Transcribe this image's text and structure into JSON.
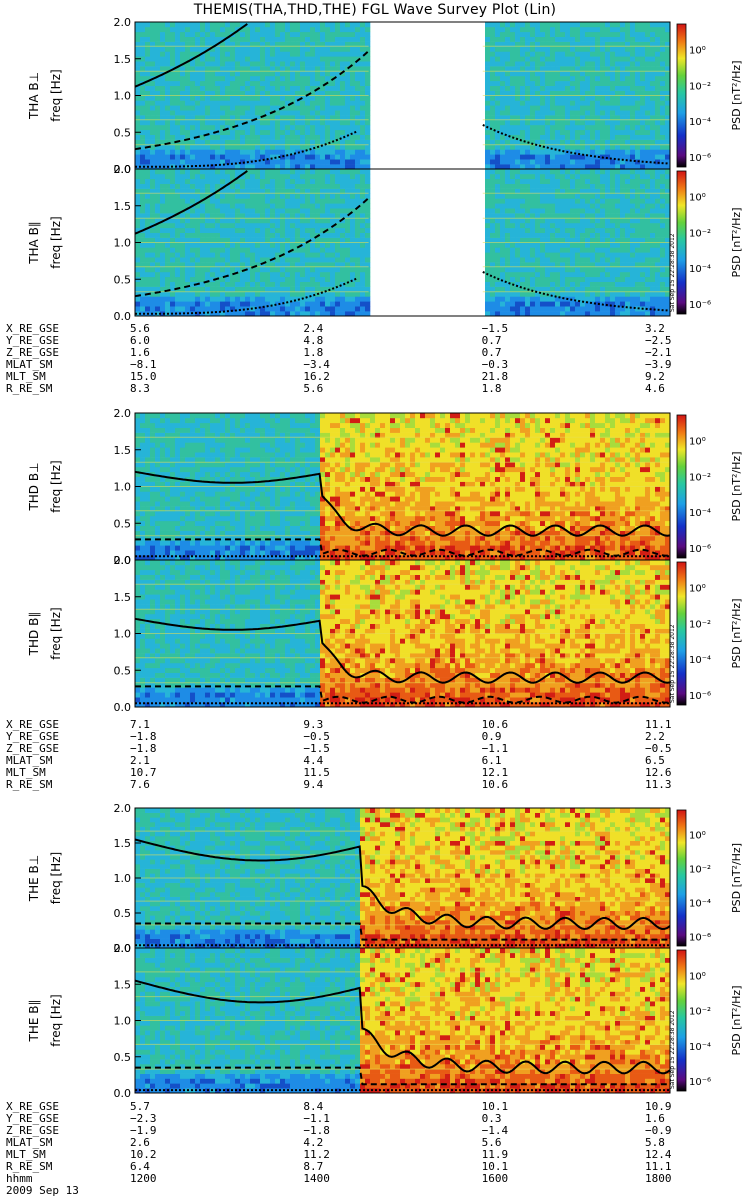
{
  "title": "THEMIS(THA,THD,THE) FGL Wave Survey Plot (Lin)",
  "freq_label": "freq [Hz]",
  "colorbar_label": "PSD [nT²/Hz]",
  "colorbar_ticks": [
    "10⁰",
    "10⁻²",
    "10⁻⁴",
    "10⁻⁶"
  ],
  "y_ticks": [
    "2.0",
    "1.5",
    "1.0",
    "0.5",
    "0.0"
  ],
  "timestamp": "Sat Sep 15 22:28:38 2012",
  "date": "2009 Sep 13",
  "chart_data": [
    {
      "type": "heatmap",
      "panel": "THA B⊥",
      "probe": "THA",
      "ylabel": "THA B⊥",
      "ylim": [
        0,
        2.0
      ],
      "scale": "linear",
      "data_intervals": [
        [
          1200,
          1462
        ],
        [
          1590,
          1800
        ]
      ],
      "colors": {
        "background": "#35b5a4",
        "activity": "#e8d03c",
        "line": "#e04444"
      }
    },
    {
      "type": "heatmap",
      "panel": "THA B∥",
      "probe": "THA",
      "ylabel": "THA B∥",
      "ylim": [
        0,
        2.0
      ],
      "scale": "linear",
      "data_intervals": [
        [
          1200,
          1462
        ],
        [
          1590,
          1800
        ]
      ]
    },
    {
      "type": "heatmap",
      "panel": "THD B⊥",
      "probe": "THD",
      "ylabel": "THD B⊥",
      "ylim": [
        0,
        2.0
      ],
      "scale": "linear",
      "data_intervals": [
        [
          1200,
          1800
        ]
      ],
      "activity_onset": 1410
    },
    {
      "type": "heatmap",
      "panel": "THD B∥",
      "probe": "THD",
      "ylabel": "THD B∥",
      "ylim": [
        0,
        2.0
      ],
      "scale": "linear",
      "data_intervals": [
        [
          1200,
          1800
        ]
      ],
      "activity_onset": 1410
    },
    {
      "type": "heatmap",
      "panel": "THE B⊥",
      "probe": "THE",
      "ylabel": "THE B⊥",
      "ylim": [
        0,
        2.0
      ],
      "scale": "linear",
      "data_intervals": [
        [
          1200,
          1800
        ]
      ],
      "activity_onset": 1455
    },
    {
      "type": "heatmap",
      "panel": "THE B∥",
      "probe": "THE",
      "ylabel": "THE B∥",
      "ylim": [
        0,
        2.0
      ],
      "scale": "linear",
      "data_intervals": [
        [
          1200,
          1800
        ]
      ],
      "activity_onset": 1455
    }
  ],
  "ephemeris": [
    {
      "rows": [
        {
          "label": "X_RE_GSE",
          "values": [
            "5.6",
            "2.4",
            "−1.5",
            "3.2"
          ]
        },
        {
          "label": "Y_RE_GSE",
          "values": [
            "6.0",
            "4.8",
            "0.7",
            "−2.5"
          ]
        },
        {
          "label": "Z_RE_GSE",
          "values": [
            "1.6",
            "1.8",
            "0.7",
            "−2.1"
          ]
        },
        {
          "label": "MLAT_SM",
          "values": [
            "−8.1",
            "−3.4",
            "−0.3",
            "−3.9"
          ]
        },
        {
          "label": "MLT_SM",
          "values": [
            "15.0",
            "16.2",
            "21.8",
            "9.2"
          ]
        },
        {
          "label": "R_RE_SM",
          "values": [
            "8.3",
            "5.6",
            "1.8",
            "4.6"
          ]
        }
      ]
    },
    {
      "rows": [
        {
          "label": "X_RE_GSE",
          "values": [
            "7.1",
            "9.3",
            "10.6",
            "11.1"
          ]
        },
        {
          "label": "Y_RE_GSE",
          "values": [
            "−1.8",
            "−0.5",
            "0.9",
            "2.2"
          ]
        },
        {
          "label": "Z_RE_GSE",
          "values": [
            "−1.8",
            "−1.5",
            "−1.1",
            "−0.5"
          ]
        },
        {
          "label": "MLAT_SM",
          "values": [
            "2.1",
            "4.4",
            "6.1",
            "6.5"
          ]
        },
        {
          "label": "MLT_SM",
          "values": [
            "10.7",
            "11.5",
            "12.1",
            "12.6"
          ]
        },
        {
          "label": "R_RE_SM",
          "values": [
            "7.6",
            "9.4",
            "10.6",
            "11.3"
          ]
        }
      ]
    },
    {
      "rows": [
        {
          "label": "X_RE_GSE",
          "values": [
            "5.7",
            "8.4",
            "10.1",
            "10.9"
          ]
        },
        {
          "label": "Y_RE_GSE",
          "values": [
            "−2.3",
            "−1.1",
            "0.3",
            "1.6"
          ]
        },
        {
          "label": "Z_RE_GSE",
          "values": [
            "−1.9",
            "−1.8",
            "−1.4",
            "−0.9"
          ]
        },
        {
          "label": "MLAT_SM",
          "values": [
            "2.6",
            "4.2",
            "5.6",
            "5.8"
          ]
        },
        {
          "label": "MLT_SM",
          "values": [
            "10.2",
            "11.2",
            "11.9",
            "12.4"
          ]
        },
        {
          "label": "R_RE_SM",
          "values": [
            "6.4",
            "8.7",
            "10.1",
            "11.1"
          ]
        },
        {
          "label": "hhmm",
          "values": [
            "1200",
            "1400",
            "1600",
            "1800"
          ]
        }
      ]
    }
  ]
}
